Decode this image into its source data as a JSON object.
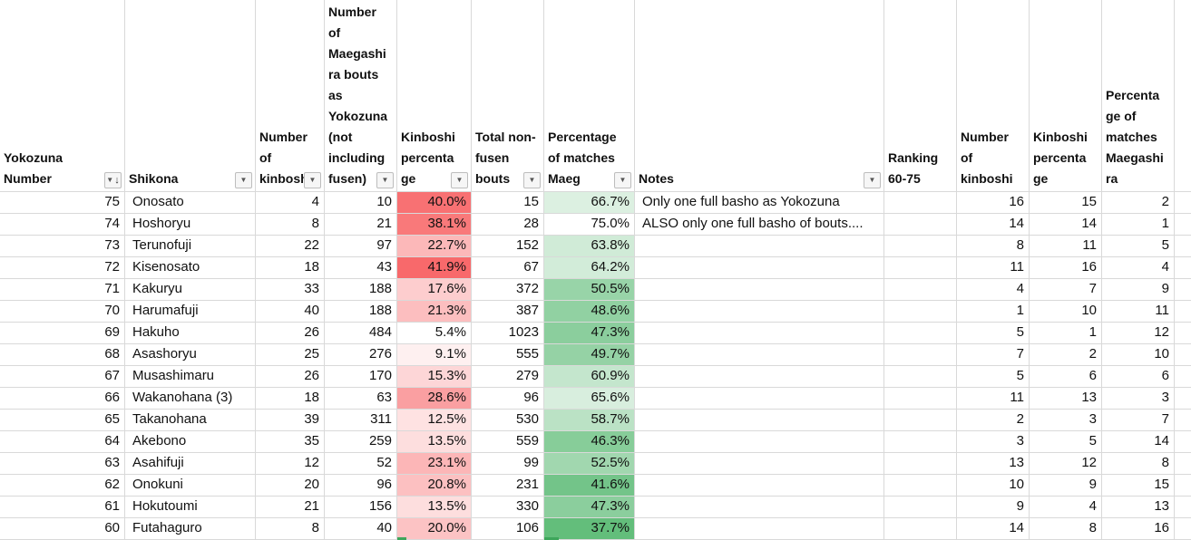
{
  "sheet": {
    "app": "spreadsheet",
    "grid_color": "#d9d9d9",
    "background": "#ffffff",
    "red_scale_max_color": "#F8696B",
    "green_scale_max_color": "#63BE7B",
    "next_row_sliver_color": "#3EA65B"
  },
  "columns": [
    {
      "id": "yokozuna_number",
      "label": "Yokozuna Number",
      "display": "Yokozuna\nNumber",
      "filter": "sort-descending-filter"
    },
    {
      "id": "shikona",
      "label": "Shikona",
      "display": "Shikona",
      "filter": "dropdown"
    },
    {
      "id": "kinboshi",
      "label": "Number of kinboshi",
      "display": "Number\nof\nkinboshi",
      "filter": "dropdown"
    },
    {
      "id": "maegashira_bouts",
      "label": "Number of Maegashira bouts as Yokozuna (not including fusen)",
      "display": "Number\nof\nMaegashi\nra bouts\nas\nYokozuna\n(not\nincluding\nfusen)",
      "filter": "dropdown"
    },
    {
      "id": "kinboshi_pct",
      "label": "Kinboshi percentage",
      "display": "Kinboshi\npercenta\nge",
      "filter": "dropdown"
    },
    {
      "id": "total_bouts",
      "label": "Total non-fusen bouts",
      "display": "Total non-\nfusen\nbouts",
      "filter": "dropdown"
    },
    {
      "id": "maeg_pct",
      "label": "Percentage of matches Maeg",
      "display": "Percentage\nof matches\nMaeg",
      "filter": "dropdown"
    },
    {
      "id": "notes",
      "label": "Notes",
      "display": "Notes",
      "filter": "dropdown"
    },
    {
      "id": "ranking_60_75",
      "label": "Ranking 60-75",
      "display": "Ranking\n60-75",
      "filter": "none"
    },
    {
      "id": "rank_kinboshi",
      "label": "Number of kinboshi",
      "display": "Number\nof\nkinboshi",
      "filter": "none"
    },
    {
      "id": "rank_kinboshi_pct",
      "label": "Kinboshi percentage",
      "display": "Kinboshi\npercenta\nge",
      "filter": "none"
    },
    {
      "id": "rank_maeg_pct",
      "label": "Percentage of matches Maegashira",
      "display": "Percenta\nge of\nmatches\nMaegashi\nra",
      "filter": "none"
    },
    {
      "id": "spacer",
      "label": "",
      "display": "",
      "filter": "none"
    }
  ],
  "rows": [
    {
      "yokozuna_number": 75,
      "shikona": "Onosato",
      "kinboshi": 4,
      "maegashira_bouts": 10,
      "kinboshi_pct": "40.0%",
      "kinboshi_pct_color": "#F87173",
      "total_bouts": 15,
      "maeg_pct": "66.7%",
      "maeg_pct_color": "#DCF0E1",
      "notes": "Only one full basho as Yokozuna",
      "ranking_60_75": "",
      "rank_kinboshi": 16,
      "rank_kinboshi_pct": 15,
      "rank_maeg_pct": 2,
      "spacer": ""
    },
    {
      "yokozuna_number": 74,
      "shikona": "Hoshoryu",
      "kinboshi": 8,
      "maegashira_bouts": 21,
      "kinboshi_pct": "38.1%",
      "kinboshi_pct_color": "#F9797A",
      "total_bouts": 28,
      "maeg_pct": "75.0%",
      "maeg_pct_color": "#FFFFFF",
      "notes": "ALSO only one full basho of bouts....",
      "ranking_60_75": "",
      "rank_kinboshi": 14,
      "rank_kinboshi_pct": 14,
      "rank_maeg_pct": 1,
      "spacer": ""
    },
    {
      "yokozuna_number": 73,
      "shikona": "Terunofuji",
      "kinboshi": 22,
      "maegashira_bouts": 97,
      "kinboshi_pct": "22.7%",
      "kinboshi_pct_color": "#FCB8B9",
      "total_bouts": 152,
      "maeg_pct": "63.8%",
      "maeg_pct_color": "#D0EBD7",
      "notes": "",
      "ranking_60_75": "",
      "rank_kinboshi": 8,
      "rank_kinboshi_pct": 11,
      "rank_maeg_pct": 5,
      "spacer": ""
    },
    {
      "yokozuna_number": 72,
      "shikona": "Kisenosato",
      "kinboshi": 18,
      "maegashira_bouts": 43,
      "kinboshi_pct": "41.9%",
      "kinboshi_pct_color": "#F8696B",
      "total_bouts": 67,
      "maeg_pct": "64.2%",
      "maeg_pct_color": "#D2ECD9",
      "notes": "",
      "ranking_60_75": "",
      "rank_kinboshi": 11,
      "rank_kinboshi_pct": 16,
      "rank_maeg_pct": 4,
      "spacer": ""
    },
    {
      "yokozuna_number": 71,
      "shikona": "Kakuryu",
      "kinboshi": 33,
      "maegashira_bouts": 188,
      "kinboshi_pct": "17.6%",
      "kinboshi_pct_color": "#FDCDCE",
      "total_bouts": 372,
      "maeg_pct": "50.5%",
      "maeg_pct_color": "#98D4A8",
      "notes": "",
      "ranking_60_75": "",
      "rank_kinboshi": 4,
      "rank_kinboshi_pct": 7,
      "rank_maeg_pct": 9,
      "spacer": ""
    },
    {
      "yokozuna_number": 70,
      "shikona": "Harumafuji",
      "kinboshi": 40,
      "maegashira_bouts": 188,
      "kinboshi_pct": "21.3%",
      "kinboshi_pct_color": "#FCBEBF",
      "total_bouts": 387,
      "maeg_pct": "48.6%",
      "maeg_pct_color": "#91D1A2",
      "notes": "",
      "ranking_60_75": "",
      "rank_kinboshi": 1,
      "rank_kinboshi_pct": 10,
      "rank_maeg_pct": 11,
      "spacer": ""
    },
    {
      "yokozuna_number": 69,
      "shikona": "Hakuho",
      "kinboshi": 26,
      "maegashira_bouts": 484,
      "kinboshi_pct": "5.4%",
      "kinboshi_pct_color": "#FFFFFF",
      "total_bouts": 1023,
      "maeg_pct": "47.3%",
      "maeg_pct_color": "#8BCE9D",
      "notes": "",
      "ranking_60_75": "",
      "rank_kinboshi": 5,
      "rank_kinboshi_pct": 1,
      "rank_maeg_pct": 12,
      "spacer": ""
    },
    {
      "yokozuna_number": 68,
      "shikona": "Asashoryu",
      "kinboshi": 25,
      "maegashira_bouts": 276,
      "kinboshi_pct": "9.1%",
      "kinboshi_pct_color": "#FEF0F0",
      "total_bouts": 555,
      "maeg_pct": "49.7%",
      "maeg_pct_color": "#95D2A5",
      "notes": "",
      "ranking_60_75": "",
      "rank_kinboshi": 7,
      "rank_kinboshi_pct": 2,
      "rank_maeg_pct": 10,
      "spacer": ""
    },
    {
      "yokozuna_number": 67,
      "shikona": "Musashimaru",
      "kinboshi": 26,
      "maegashira_bouts": 170,
      "kinboshi_pct": "15.3%",
      "kinboshi_pct_color": "#FDD6D7",
      "total_bouts": 279,
      "maeg_pct": "60.9%",
      "maeg_pct_color": "#C4E6CD",
      "notes": "",
      "ranking_60_75": "",
      "rank_kinboshi": 5,
      "rank_kinboshi_pct": 6,
      "rank_maeg_pct": 6,
      "spacer": ""
    },
    {
      "yokozuna_number": 66,
      "shikona": "Wakanohana (3)",
      "kinboshi": 18,
      "maegashira_bouts": 63,
      "kinboshi_pct": "28.6%",
      "kinboshi_pct_color": "#FA9FA1",
      "total_bouts": 96,
      "maeg_pct": "65.6%",
      "maeg_pct_color": "#D8EEDE",
      "notes": "",
      "ranking_60_75": "",
      "rank_kinboshi": 11,
      "rank_kinboshi_pct": 13,
      "rank_maeg_pct": 3,
      "spacer": ""
    },
    {
      "yokozuna_number": 65,
      "shikona": "Takanohana",
      "kinboshi": 39,
      "maegashira_bouts": 311,
      "kinboshi_pct": "12.5%",
      "kinboshi_pct_color": "#FEE2E2",
      "total_bouts": 530,
      "maeg_pct": "58.7%",
      "maeg_pct_color": "#BBE2C5",
      "notes": "",
      "ranking_60_75": "",
      "rank_kinboshi": 2,
      "rank_kinboshi_pct": 3,
      "rank_maeg_pct": 7,
      "spacer": ""
    },
    {
      "yokozuna_number": 64,
      "shikona": "Akebono",
      "kinboshi": 35,
      "maegashira_bouts": 259,
      "kinboshi_pct": "13.5%",
      "kinboshi_pct_color": "#FDDEDE",
      "total_bouts": 559,
      "maeg_pct": "46.3%",
      "maeg_pct_color": "#87CD99",
      "notes": "",
      "ranking_60_75": "",
      "rank_kinboshi": 3,
      "rank_kinboshi_pct": 5,
      "rank_maeg_pct": 14,
      "spacer": ""
    },
    {
      "yokozuna_number": 63,
      "shikona": "Asahifuji",
      "kinboshi": 12,
      "maegashira_bouts": 52,
      "kinboshi_pct": "23.1%",
      "kinboshi_pct_color": "#FCB6B7",
      "total_bouts": 99,
      "maeg_pct": "52.5%",
      "maeg_pct_color": "#A1D7AF",
      "notes": "",
      "ranking_60_75": "",
      "rank_kinboshi": 13,
      "rank_kinboshi_pct": 12,
      "rank_maeg_pct": 8,
      "spacer": ""
    },
    {
      "yokozuna_number": 62,
      "shikona": "Onokuni",
      "kinboshi": 20,
      "maegashira_bouts": 96,
      "kinboshi_pct": "20.8%",
      "kinboshi_pct_color": "#FCC0C1",
      "total_bouts": 231,
      "maeg_pct": "41.6%",
      "maeg_pct_color": "#73C489",
      "notes": "",
      "ranking_60_75": "",
      "rank_kinboshi": 10,
      "rank_kinboshi_pct": 9,
      "rank_maeg_pct": 15,
      "spacer": ""
    },
    {
      "yokozuna_number": 61,
      "shikona": "Hokutoumi",
      "kinboshi": 21,
      "maegashira_bouts": 156,
      "kinboshi_pct": "13.5%",
      "kinboshi_pct_color": "#FDDEDE",
      "total_bouts": 330,
      "maeg_pct": "47.3%",
      "maeg_pct_color": "#8BCE9D",
      "notes": "",
      "ranking_60_75": "",
      "rank_kinboshi": 9,
      "rank_kinboshi_pct": 4,
      "rank_maeg_pct": 13,
      "spacer": ""
    },
    {
      "yokozuna_number": 60,
      "shikona": "Futahaguro",
      "kinboshi": 8,
      "maegashira_bouts": 40,
      "kinboshi_pct": "20.0%",
      "kinboshi_pct_color": "#FCC3C4",
      "total_bouts": 106,
      "maeg_pct": "37.7%",
      "maeg_pct_color": "#63BE7B",
      "notes": "",
      "ranking_60_75": "",
      "rank_kinboshi": 14,
      "rank_kinboshi_pct": 8,
      "rank_maeg_pct": 16,
      "spacer": ""
    }
  ]
}
